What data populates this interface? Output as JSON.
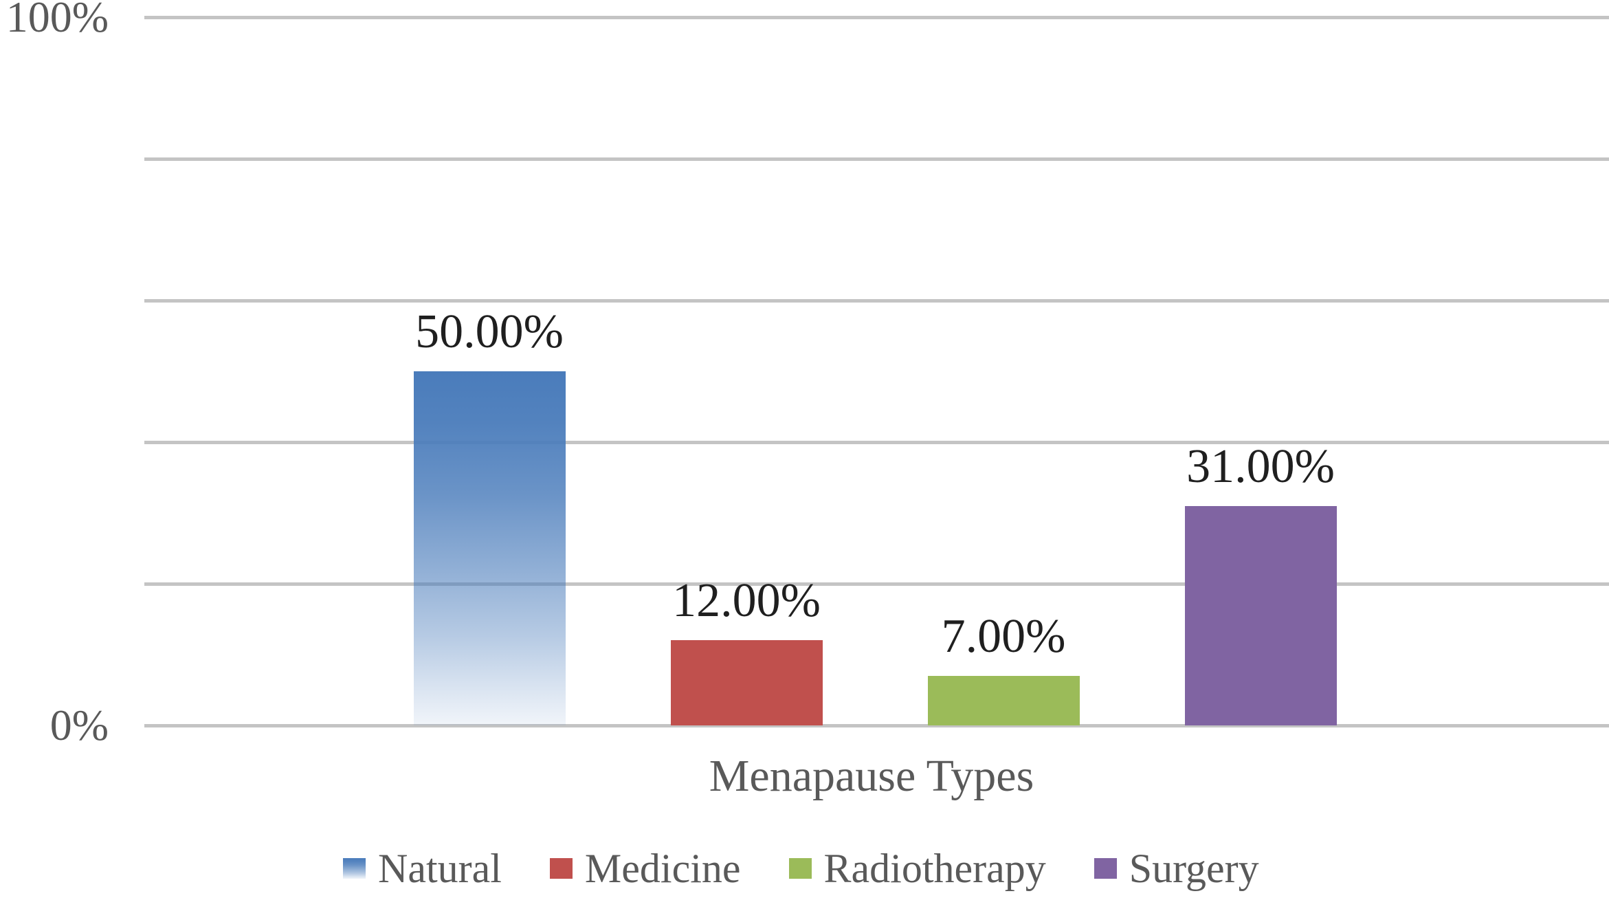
{
  "chart_data": {
    "type": "bar",
    "title": "",
    "xlabel": "Menapause Types",
    "ylabel": "",
    "ylim": [
      0,
      100
    ],
    "ytick_top": "100%",
    "ytick_bottom": "0%",
    "gridline_values": [
      100,
      80,
      60,
      40,
      20,
      0
    ],
    "grid": true,
    "categories": [
      "Natural",
      "Medicine",
      "Radiotherapy",
      "Surgery"
    ],
    "values": [
      50,
      12,
      7,
      31
    ],
    "data_labels": [
      "50.00%",
      "12.00%",
      "7.00%",
      "31.00%"
    ],
    "bar_colors": [
      "#4A7CBB",
      "#C0504D",
      "#9BBB59",
      "#8064A2"
    ],
    "bar_fill_styles": [
      "gradient-fade-to-white",
      "solid",
      "solid",
      "solid"
    ],
    "legend_position": "bottom",
    "legend": [
      "Natural",
      "Medicine",
      "Radiotherapy",
      "Surgery"
    ]
  },
  "colors": {
    "background": "#FFFFFF",
    "gridline": "#C4C4C4",
    "axis_text": "#595959",
    "data_label_text": "#1F1F1F",
    "legend_text": "#595959"
  }
}
